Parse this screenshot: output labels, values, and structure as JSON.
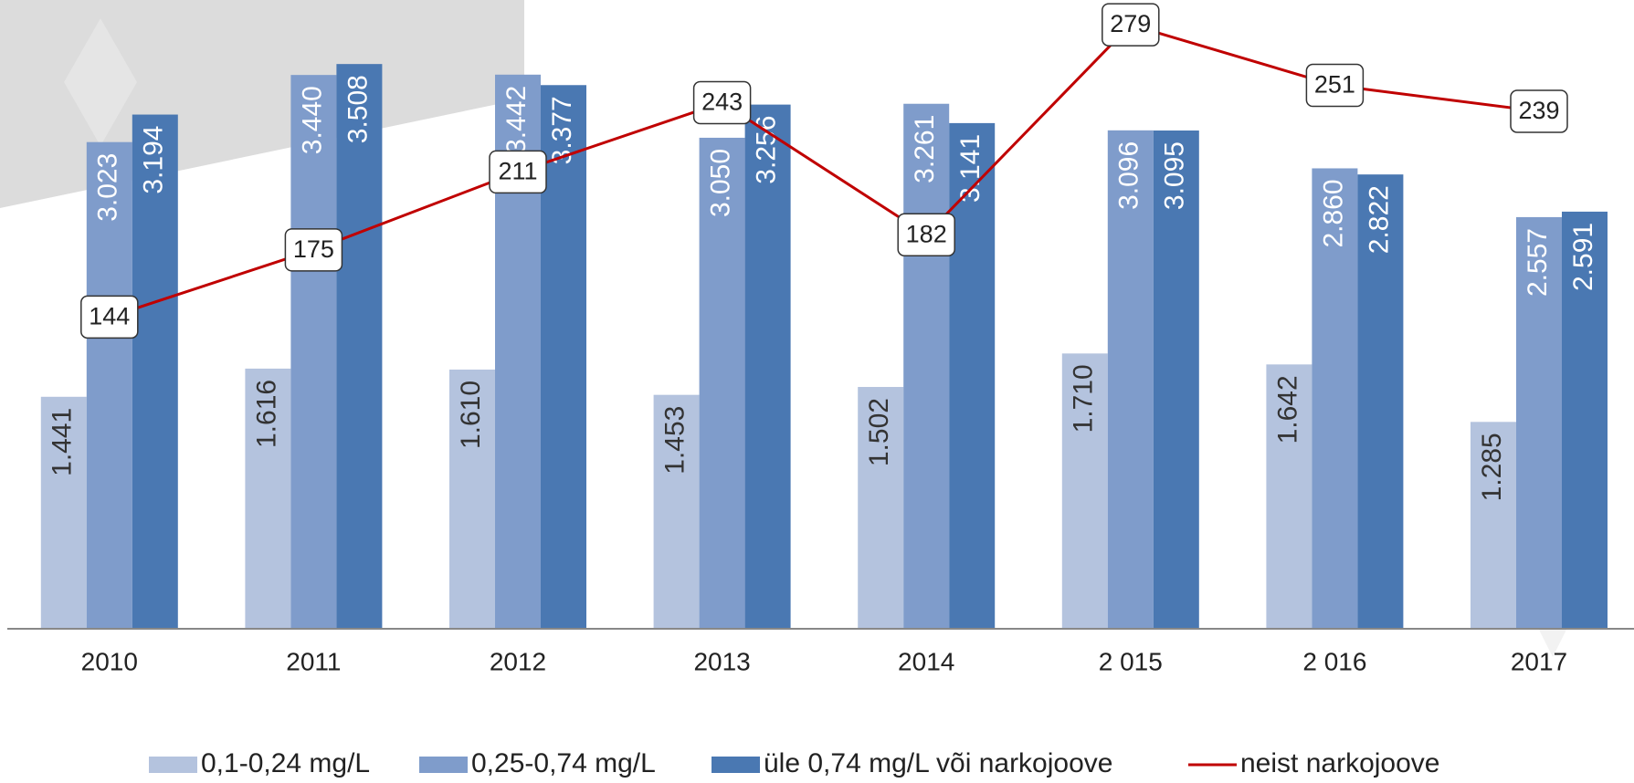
{
  "chart_data": {
    "type": "bar",
    "categories": [
      "2010",
      "2011",
      "2012",
      "2013",
      "2014",
      "2 015",
      "2 016",
      "2017"
    ],
    "series": [
      {
        "name": "0,1-0,24 mg/L",
        "color": "#b4c3de",
        "values": [
          1441,
          1616,
          1610,
          1453,
          1502,
          1710,
          1642,
          1285
        ],
        "value_labels": [
          "1.441",
          "1.616",
          "1.610",
          "1.453",
          "1.502",
          "1.710",
          "1.642",
          "1.285"
        ]
      },
      {
        "name": "0,25-0,74 mg/L",
        "color": "#7f9ccb",
        "values": [
          3023,
          3440,
          3442,
          3050,
          3261,
          3096,
          2860,
          2557
        ],
        "value_labels": [
          "3.023",
          "3.440",
          "3.442",
          "3.050",
          "3.261",
          "3.096",
          "2.860",
          "2.557"
        ]
      },
      {
        "name": "üle 0,74 mg/L või narkojoove",
        "color": "#4a78b2",
        "values": [
          3194,
          3508,
          3377,
          3256,
          3141,
          3095,
          2822,
          2591
        ],
        "value_labels": [
          "3.194",
          "3.508",
          "3.377",
          "3.256",
          "3.141",
          "3.095",
          "2.822",
          "2.591"
        ]
      },
      {
        "name": "neist narkojoove",
        "color": "#c00000",
        "type": "line",
        "axis": "y2",
        "values": [
          144,
          175,
          211,
          243,
          182,
          279,
          251,
          239
        ]
      }
    ],
    "ylim": [
      0,
      3900
    ],
    "y2lim": [
      0,
      290
    ],
    "legend": "bottom"
  }
}
